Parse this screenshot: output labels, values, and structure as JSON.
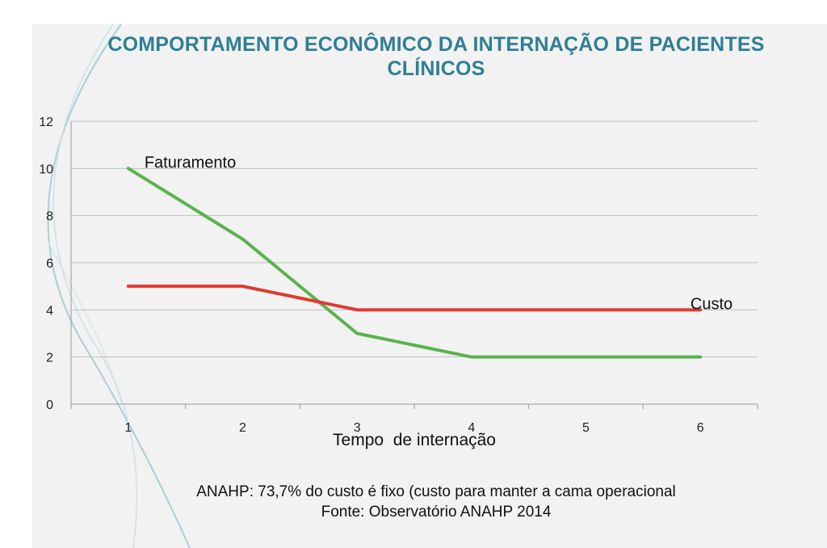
{
  "title": {
    "line1": "COMPORTAMENTO ECONÔMICO DA INTERNAÇÃO DE PACIENTES",
    "line2": "CLÍNICOS"
  },
  "colors": {
    "title": "#2e7f94",
    "faturamento": "#5ab34e",
    "custo": "#dd3b32",
    "grid": "#bfbfbf",
    "panel": "#f2f2f2"
  },
  "chart_data": {
    "type": "line",
    "x": [
      1,
      2,
      3,
      4,
      5,
      6
    ],
    "series": [
      {
        "name": "Faturamento",
        "values": [
          10,
          7,
          3,
          2,
          2,
          2
        ],
        "color": "#5ab34e"
      },
      {
        "name": "Custo",
        "values": [
          5,
          5,
          4,
          4,
          4,
          4
        ],
        "color": "#dd3b32"
      }
    ],
    "xlabel": "Tempo  de internação",
    "ylabel": "",
    "ylim": [
      0,
      12
    ],
    "yticks": [
      0,
      2,
      4,
      6,
      8,
      10,
      12
    ],
    "xticks": [
      "1",
      "2",
      "3",
      "4",
      "5",
      "6"
    ],
    "grid": true,
    "legend": "series labels placed inline next to lines"
  },
  "notes": {
    "line1": "ANAHP: 73,7% do custo é fixo (custo para manter a cama operacional",
    "line2": "Fonte: Observatório ANAHP 2014"
  }
}
